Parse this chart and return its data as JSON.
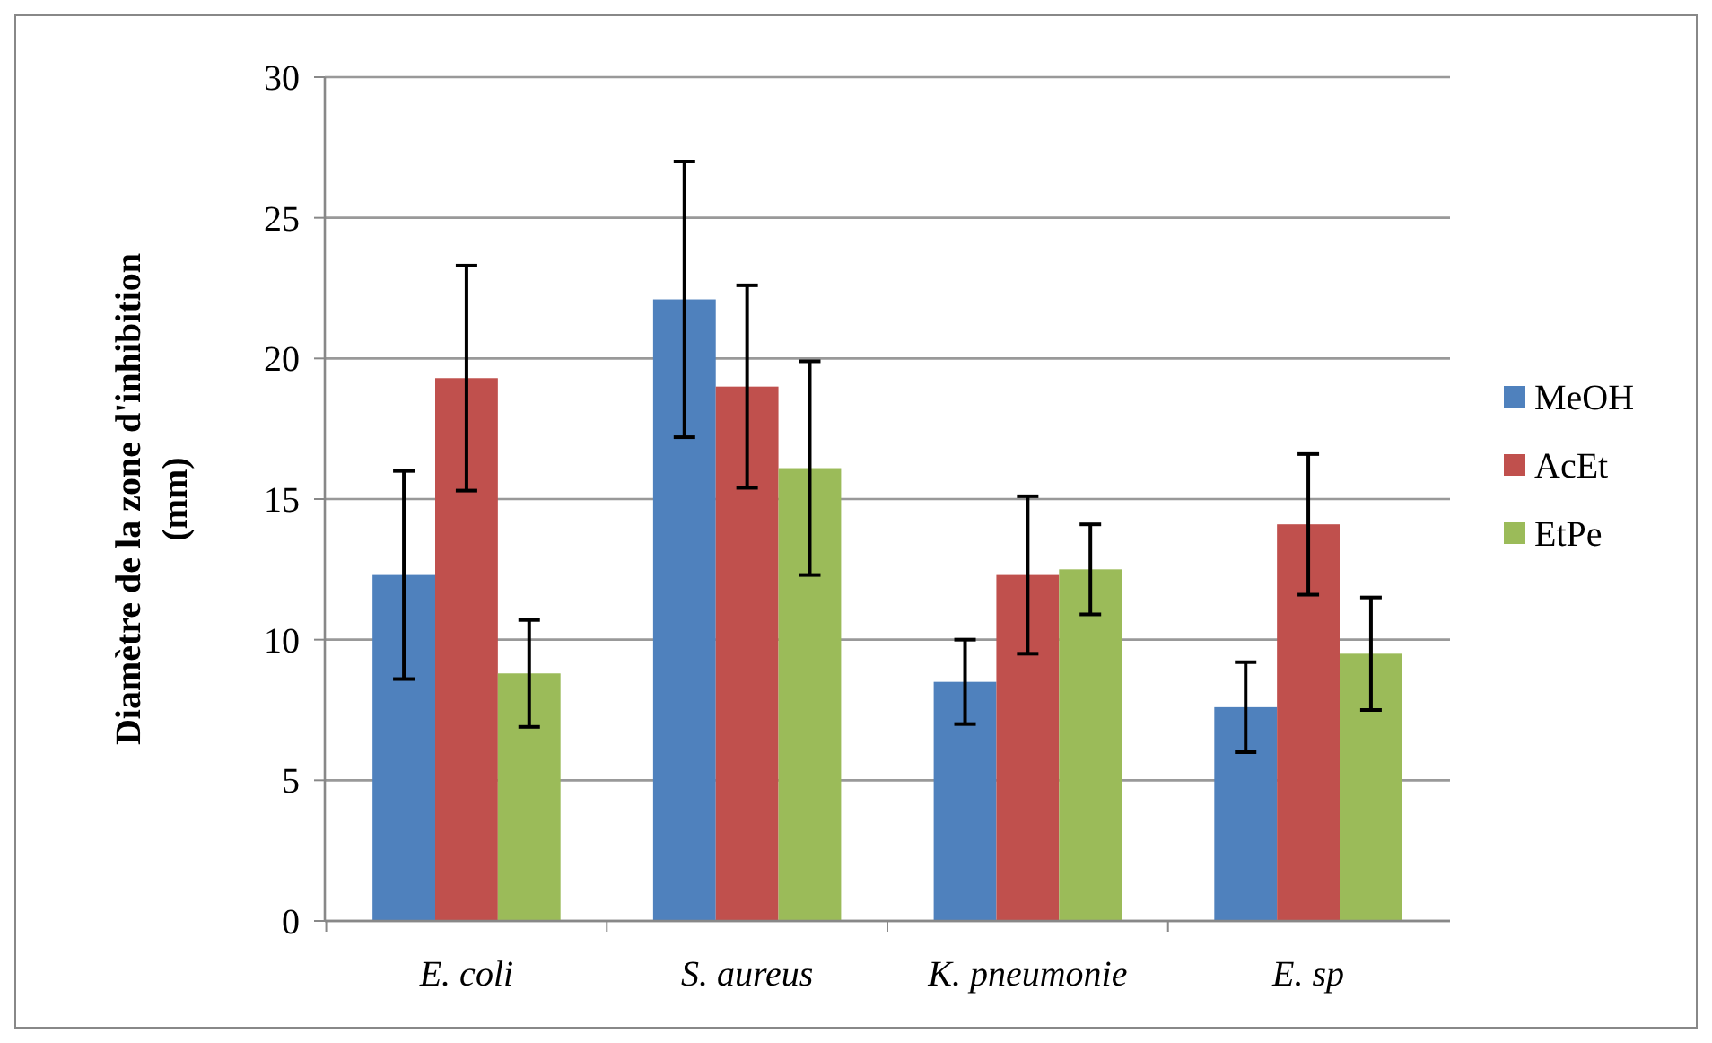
{
  "chart_data": {
    "type": "bar",
    "ylabel": "Diamètre de la zone d'inhibition\n(mm)",
    "categories": [
      "E. coli",
      "S. aureus",
      "K. pneumonie",
      "E. sp"
    ],
    "series": [
      {
        "name": "MeOH",
        "color": "#4f81bd",
        "values": [
          12.3,
          22.1,
          8.5,
          7.6
        ],
        "errors": [
          3.7,
          4.9,
          1.5,
          1.6
        ]
      },
      {
        "name": "AcEt",
        "color": "#c0504d",
        "values": [
          19.3,
          19.0,
          12.3,
          14.1
        ],
        "errors": [
          4.0,
          3.6,
          2.8,
          2.5
        ]
      },
      {
        "name": "EtPe",
        "color": "#9bbb59",
        "values": [
          8.8,
          16.1,
          12.5,
          9.5
        ],
        "errors": [
          1.9,
          3.8,
          1.6,
          2.0
        ]
      }
    ],
    "ylim": [
      0,
      30
    ],
    "yticks": [
      0,
      5,
      10,
      15,
      20,
      25,
      30
    ],
    "grid": "y",
    "legend": "right"
  }
}
